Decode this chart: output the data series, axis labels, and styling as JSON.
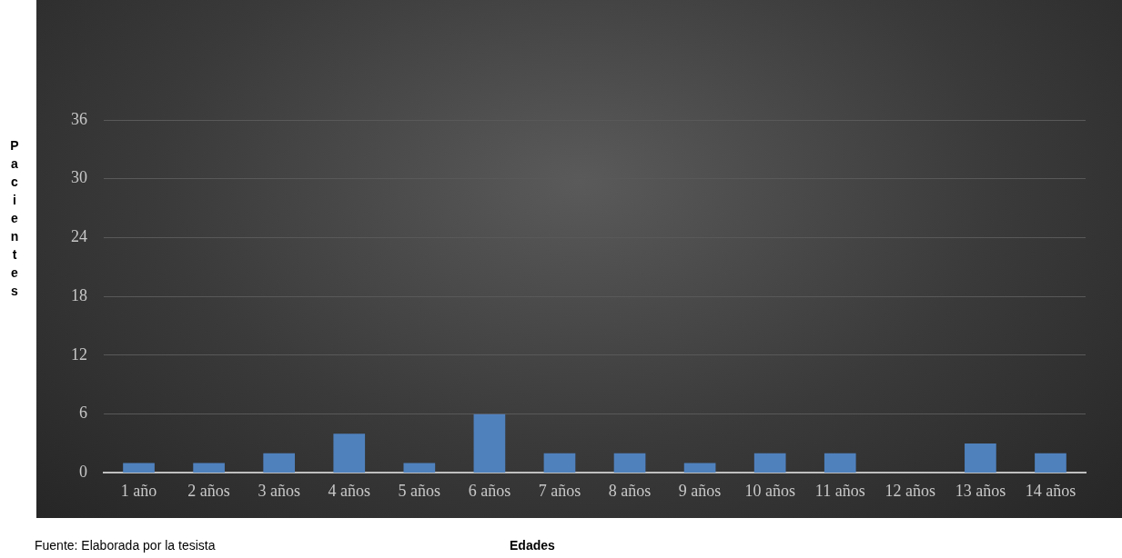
{
  "chart_data": {
    "type": "bar",
    "ylabel": "Pacientes",
    "xlabel": "Edades",
    "categories": [
      "1 año",
      "2 años",
      "3 años",
      "4 años",
      "5 años",
      "6 años",
      "7 años",
      "8 años",
      "9 años",
      "10 años",
      "11 años",
      "12 años",
      "13 años",
      "14 años"
    ],
    "values": [
      1,
      1,
      2,
      4,
      1,
      6,
      2,
      2,
      1,
      2,
      2,
      0,
      3,
      2
    ],
    "color": "#4f81bd",
    "ylim": [
      0,
      36
    ],
    "yticks": [
      0,
      6,
      12,
      18,
      24,
      30,
      36
    ],
    "grid": "y",
    "legend": false,
    "annotations": [
      "Fuente: Elaborada por la tesista"
    ]
  }
}
